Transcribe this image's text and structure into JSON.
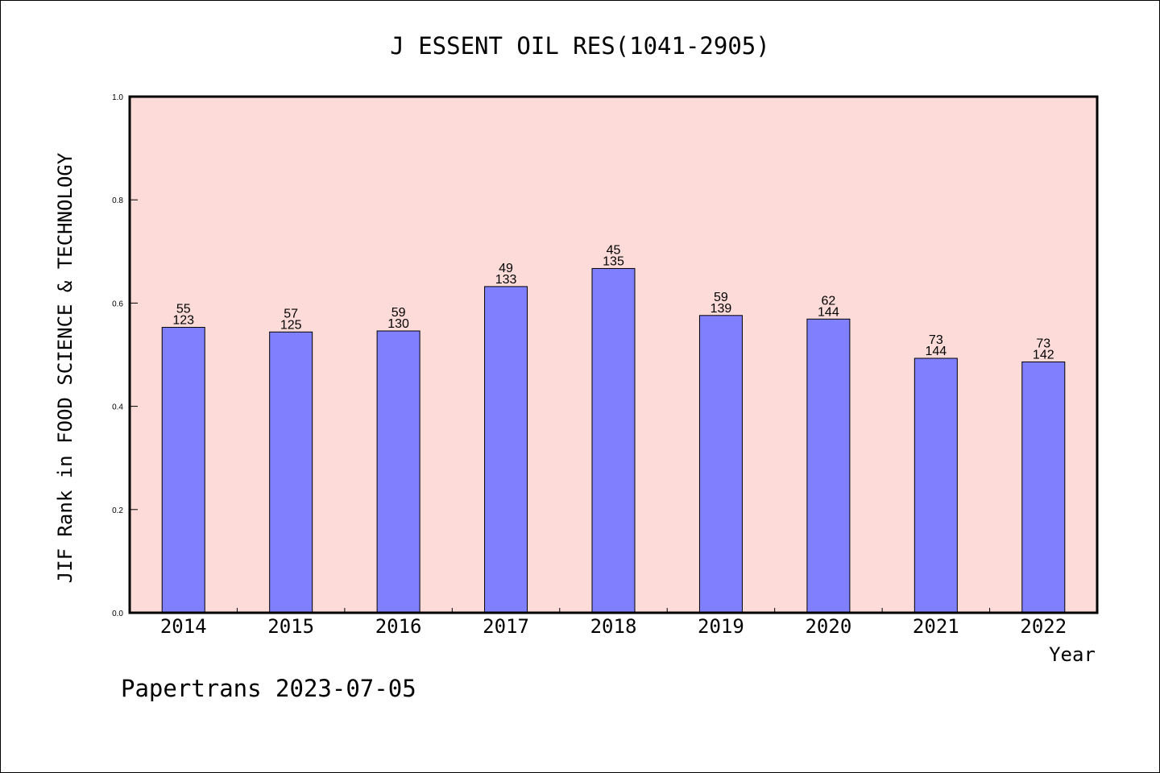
{
  "chart_data": {
    "type": "bar",
    "title": "J ESSENT OIL RES(1041-2905)",
    "xlabel": "Year",
    "ylabel": "JIF Rank in FOOD SCIENCE & TECHNOLOGY",
    "ylim": [
      0,
      1.0
    ],
    "yticks": [
      "0.0",
      "0.2",
      "0.4",
      "0.6",
      "0.8",
      "1.0"
    ],
    "grid": false,
    "categories": [
      "2014",
      "2015",
      "2016",
      "2017",
      "2018",
      "2019",
      "2020",
      "2021",
      "2022"
    ],
    "values": [
      0.553,
      0.544,
      0.546,
      0.632,
      0.667,
      0.576,
      0.569,
      0.493,
      0.486
    ],
    "annotations": [
      {
        "rank": "55",
        "total": "123"
      },
      {
        "rank": "57",
        "total": "125"
      },
      {
        "rank": "59",
        "total": "130"
      },
      {
        "rank": "49",
        "total": "133"
      },
      {
        "rank": "45",
        "total": "135"
      },
      {
        "rank": "59",
        "total": "139"
      },
      {
        "rank": "62",
        "total": "144"
      },
      {
        "rank": "73",
        "total": "144"
      },
      {
        "rank": "73",
        "total": "142"
      }
    ]
  },
  "footer": "Papertrans 2023-07-05",
  "colors": {
    "plot_background": "#fddbd8",
    "bar_fill": "#8080ff",
    "bar_stroke": "#000000",
    "axis": "#000000"
  }
}
